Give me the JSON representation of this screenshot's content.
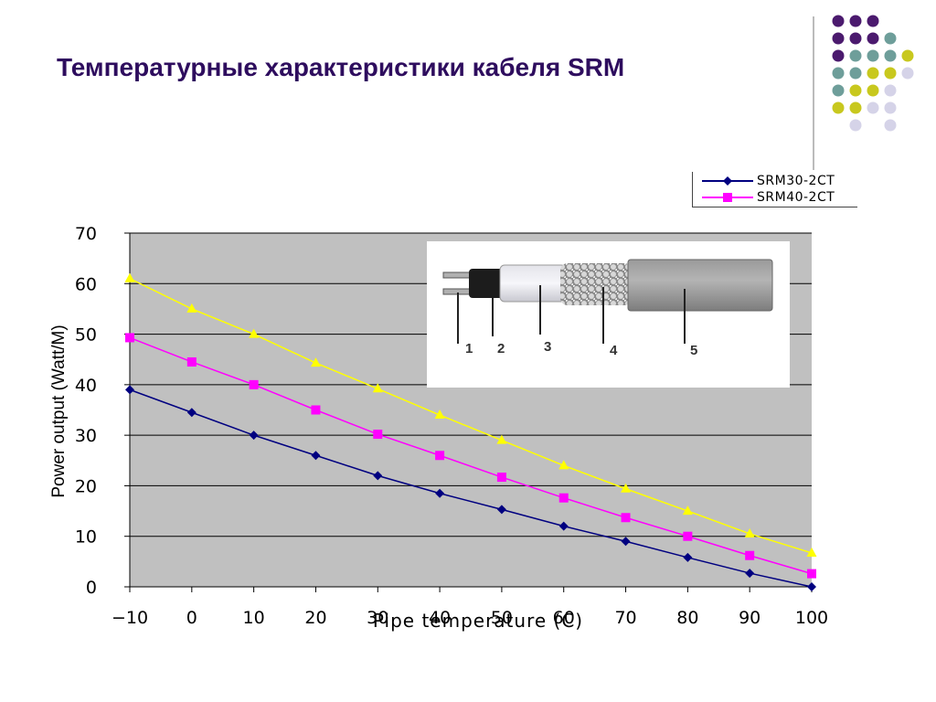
{
  "slide": {
    "title": "Температурные характеристики кабеля SRM"
  },
  "decoration": {
    "dot_colors": {
      "purple": "#4b1a6e",
      "teal": "#6e9e9a",
      "olive": "#c8c81e",
      "lavender": "#d5d3e8"
    },
    "dot_grid": [
      [
        "purple",
        "purple",
        "purple",
        null,
        null
      ],
      [
        "purple",
        "purple",
        "purple",
        "teal",
        null
      ],
      [
        "purple",
        "teal",
        "teal",
        "teal",
        "olive"
      ],
      [
        "teal",
        "teal",
        "olive",
        "olive",
        "lavender"
      ],
      [
        "teal",
        "olive",
        "olive",
        "lavender",
        null
      ],
      [
        "olive",
        "olive",
        "lavender",
        "lavender",
        null
      ],
      [
        null,
        "lavender",
        null,
        "lavender",
        null
      ]
    ]
  },
  "photo": {
    "labels": [
      "1",
      "2",
      "3",
      "4",
      "5"
    ]
  },
  "chart_data": {
    "type": "line",
    "xlabel": "Pipe temperature (C)",
    "ylabel": "Power output (Watt/M)",
    "x": [
      -10,
      0,
      10,
      20,
      30,
      40,
      50,
      60,
      70,
      80,
      90,
      100
    ],
    "x_tick_labels": [
      "−10",
      "0",
      "10",
      "20",
      "30",
      "40",
      "50",
      "60",
      "70",
      "80",
      "90",
      "100"
    ],
    "ylim": [
      0,
      70
    ],
    "y_ticks": [
      0,
      10,
      20,
      30,
      40,
      50,
      60,
      70
    ],
    "grid": true,
    "plot_background": "#c0c0c0",
    "legend_position": "top-right",
    "series": [
      {
        "name": "SRM30-2CT",
        "color": "#000080",
        "marker": "diamond",
        "values": [
          39,
          34.5,
          30,
          26,
          22,
          18.5,
          15.3,
          12,
          9,
          5.8,
          2.7,
          0
        ]
      },
      {
        "name": "SRM40-2CT",
        "color": "#ff00ff",
        "marker": "square",
        "values": [
          49.3,
          44.5,
          40,
          35,
          30.2,
          26,
          21.7,
          17.6,
          13.7,
          10,
          6.2,
          2.6
        ]
      },
      {
        "name": "",
        "color": "#ffff00",
        "marker": "triangle",
        "values": [
          61,
          55,
          50,
          44.3,
          39.2,
          34,
          29,
          24,
          19.4,
          15,
          10.5,
          6.7
        ]
      }
    ]
  }
}
